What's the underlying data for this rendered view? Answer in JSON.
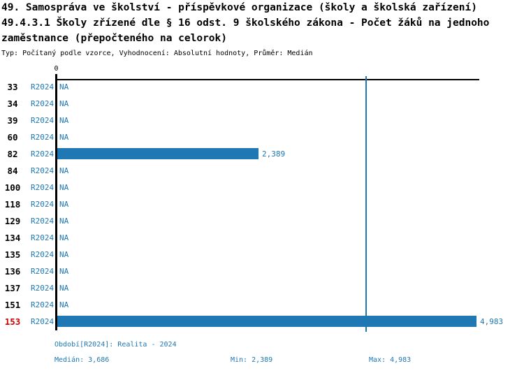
{
  "title": {
    "line1": "49. Samospráva ve školství - příspěvkové organizace (školy a školská zařízení)",
    "line2": "49.4.3.1 Školy zřízené dle § 16 odst. 9 školského zákona - Počet žáků na jednoho",
    "line3": "zaměstnance (přepočteného na celorok)",
    "meta": "Typ: Počítaný podle vzorce, Vyhodnocení: Absolutní hodnoty, Průměr: Medián"
  },
  "chart_data": {
    "type": "bar",
    "orientation": "horizontal",
    "title": "49.4.3.1 Školy zřízené dle § 16 odst. 9 školského zákona - Počet žáků na jednoho zaměstnance (přepočteného na celorok)",
    "series_label": "R2024",
    "na_label": "NA",
    "categories": [
      "33",
      "34",
      "39",
      "60",
      "82",
      "84",
      "100",
      "118",
      "129",
      "134",
      "135",
      "136",
      "137",
      "151",
      "153"
    ],
    "rows": [
      {
        "id": "33",
        "period": "R2024",
        "value": null,
        "display": "NA",
        "highlighted": false
      },
      {
        "id": "34",
        "period": "R2024",
        "value": null,
        "display": "NA",
        "highlighted": false
      },
      {
        "id": "39",
        "period": "R2024",
        "value": null,
        "display": "NA",
        "highlighted": false
      },
      {
        "id": "60",
        "period": "R2024",
        "value": null,
        "display": "NA",
        "highlighted": false
      },
      {
        "id": "82",
        "period": "R2024",
        "value": 2389,
        "display": "2,389",
        "highlighted": false
      },
      {
        "id": "84",
        "period": "R2024",
        "value": null,
        "display": "NA",
        "highlighted": false
      },
      {
        "id": "100",
        "period": "R2024",
        "value": null,
        "display": "NA",
        "highlighted": false
      },
      {
        "id": "118",
        "period": "R2024",
        "value": null,
        "display": "NA",
        "highlighted": false
      },
      {
        "id": "129",
        "period": "R2024",
        "value": null,
        "display": "NA",
        "highlighted": false
      },
      {
        "id": "134",
        "period": "R2024",
        "value": null,
        "display": "NA",
        "highlighted": false
      },
      {
        "id": "135",
        "period": "R2024",
        "value": null,
        "display": "NA",
        "highlighted": false
      },
      {
        "id": "136",
        "period": "R2024",
        "value": null,
        "display": "NA",
        "highlighted": false
      },
      {
        "id": "137",
        "period": "R2024",
        "value": null,
        "display": "NA",
        "highlighted": false
      },
      {
        "id": "151",
        "period": "R2024",
        "value": null,
        "display": "NA",
        "highlighted": false
      },
      {
        "id": "153",
        "period": "R2024",
        "value": 4983,
        "display": "4,983",
        "highlighted": true
      }
    ],
    "xlim": [
      0,
      5033
    ],
    "x_ticks": [
      {
        "value": 0,
        "label": "0"
      }
    ],
    "grid": false,
    "legend": "none",
    "median": 3686,
    "min": 2389,
    "max": 4983
  },
  "footer": {
    "period_label": "Období[R2024]: Realita - 2024",
    "median_label": "Medián: 3,686",
    "min_label": "Min: 2,389",
    "max_label": "Max: 4,983"
  },
  "colors": {
    "bar_blue": "#1f77b4",
    "text_blue": "#1f77b4",
    "highlight_red": "#d40000",
    "axis_black": "#000000"
  }
}
